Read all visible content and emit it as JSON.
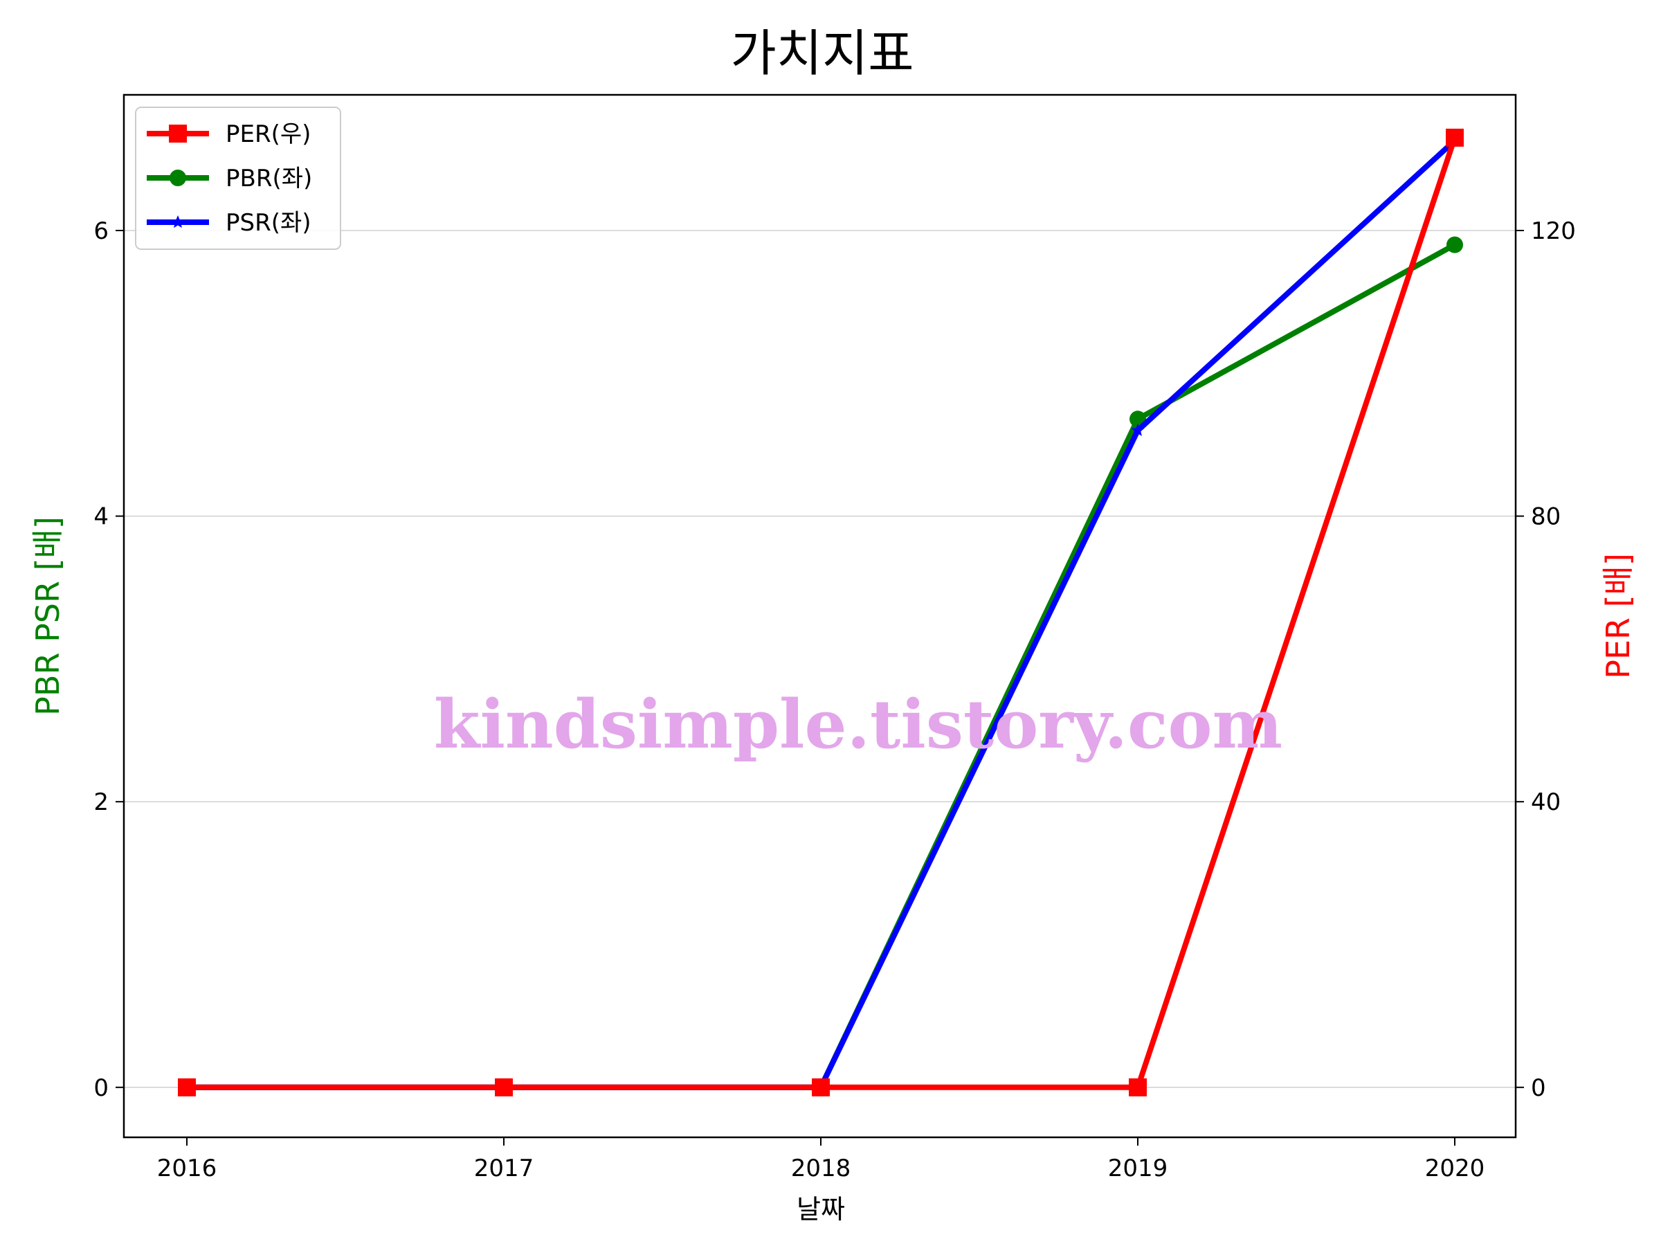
{
  "chart_data": {
    "type": "line",
    "title": "가치지표",
    "xlabel": "날짜",
    "ylabel_left": "PBR PSR [배]",
    "ylabel_right": "PER [배]",
    "categories": [
      "2016",
      "2017",
      "2018",
      "2019",
      "2020"
    ],
    "ylim_left": [
      -0.35,
      6.95
    ],
    "ylim_right": [
      -7,
      139
    ],
    "yticks_left": [
      "0",
      "2",
      "4",
      "6"
    ],
    "yticks_right": [
      "0",
      "40",
      "80",
      "120"
    ],
    "grid": "horizontal",
    "legend_position": "top-left",
    "series": [
      {
        "name": "PER(우)",
        "axis": "right",
        "color": "#ff0000",
        "marker": "square",
        "values": [
          0,
          0,
          0,
          0,
          133
        ]
      },
      {
        "name": "PBR(좌)",
        "axis": "left",
        "color": "#008000",
        "marker": "circle",
        "values": [
          0,
          0,
          0,
          4.68,
          5.9
        ]
      },
      {
        "name": "PSR(좌)",
        "axis": "left",
        "color": "#0000ff",
        "marker": "star",
        "values": [
          0,
          0,
          0,
          4.6,
          6.63
        ]
      }
    ],
    "watermark": "kindsimple.tistory.com"
  }
}
